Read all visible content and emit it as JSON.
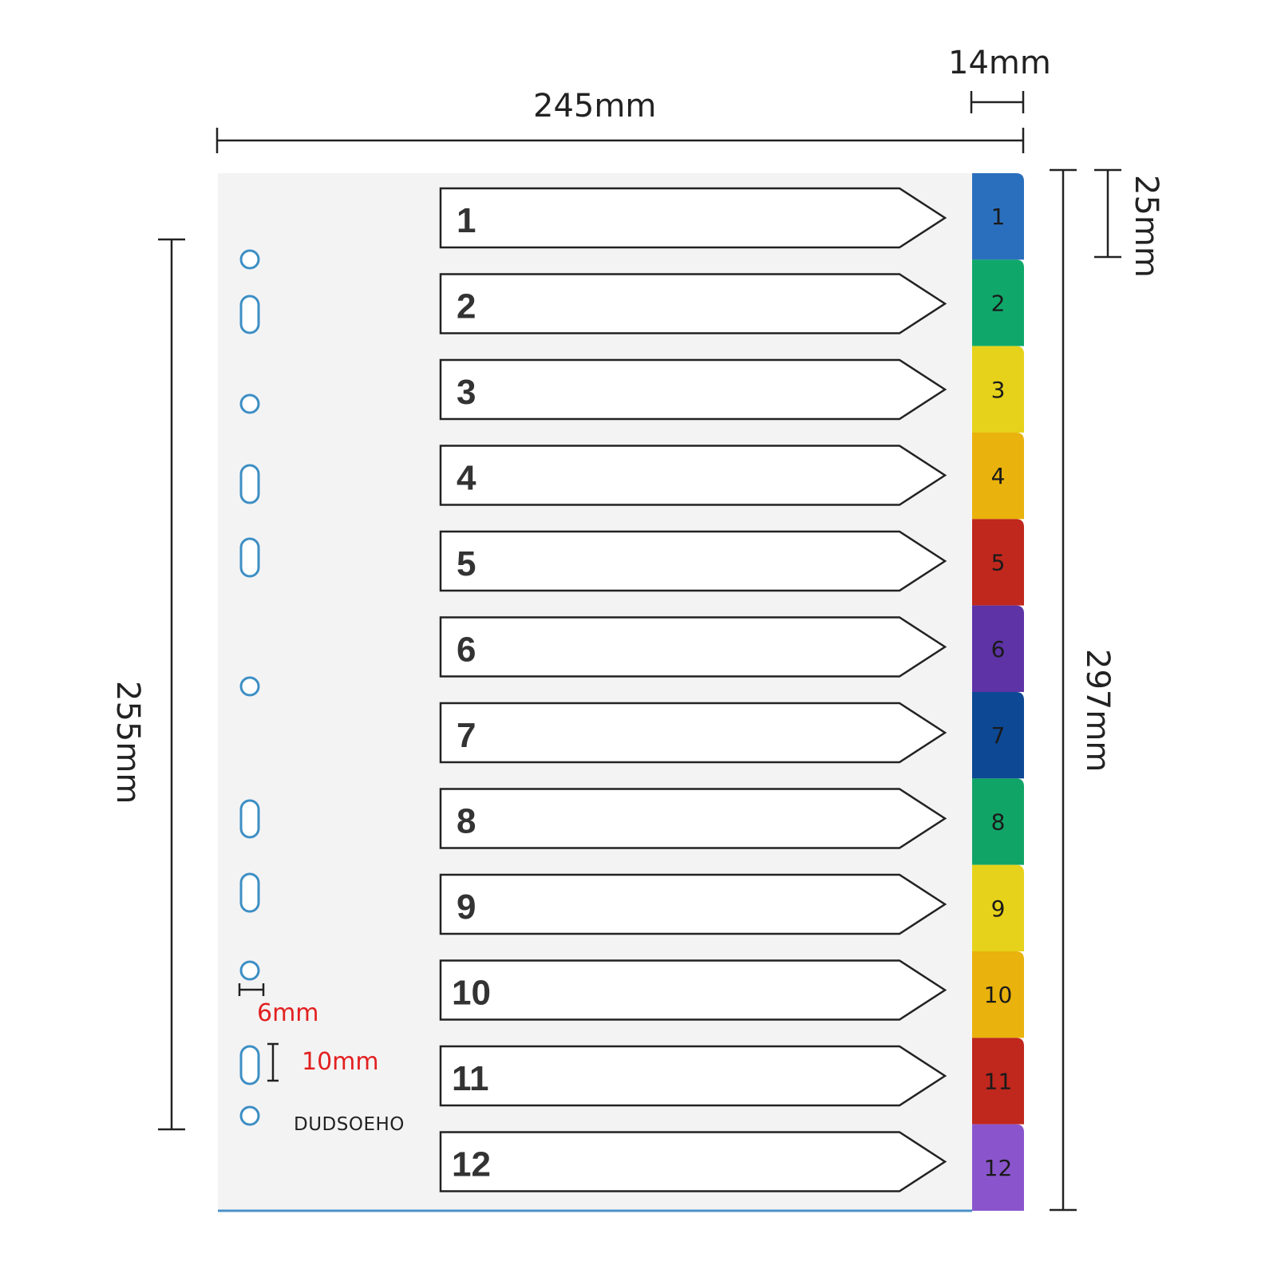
{
  "dimensions": {
    "width": "245mm",
    "tab_width": "14mm",
    "height_total": "297mm",
    "height_holes": "255mm",
    "tab_height": "25mm",
    "hole_diameter": "6mm",
    "slot_height": "10mm"
  },
  "brand": "DUDSOEHO",
  "tabs": [
    {
      "label": "1",
      "color": "#2a6fbd"
    },
    {
      "label": "2",
      "color": "#0fa86a"
    },
    {
      "label": "3",
      "color": "#e6d21a"
    },
    {
      "label": "4",
      "color": "#e9b20c"
    },
    {
      "label": "5",
      "color": "#c0271d"
    },
    {
      "label": "6",
      "color": "#5d33a6"
    },
    {
      "label": "7",
      "color": "#0d4894"
    },
    {
      "label": "8",
      "color": "#11a467"
    },
    {
      "label": "9",
      "color": "#e6d21a"
    },
    {
      "label": "10",
      "color": "#e9b20c"
    },
    {
      "label": "11",
      "color": "#c0271d"
    },
    {
      "label": "12",
      "color": "#8a55cc"
    }
  ],
  "hole_style": [
    "round",
    "slot",
    "round",
    "slot",
    "slot",
    "round",
    "slot",
    "slot",
    "round",
    "slot",
    "round"
  ]
}
